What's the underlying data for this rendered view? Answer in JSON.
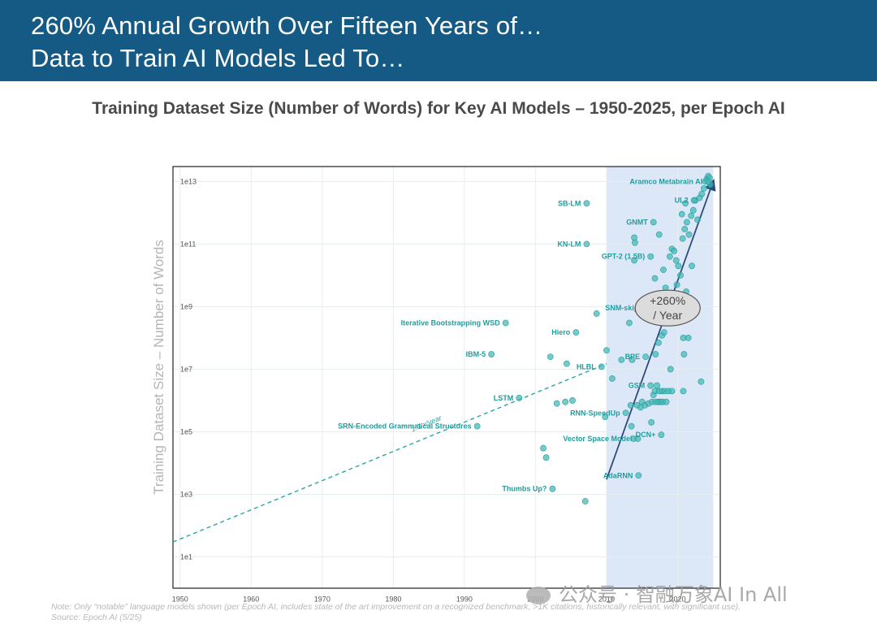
{
  "banner": {
    "line1": "260% Annual Growth Over Fifteen Years of…",
    "line2": "Data to Train AI Models Led To…"
  },
  "subtitle": "Training Dataset Size (Number of Words) for Key AI Models – 1950-2025, per Epoch AI",
  "chart_data": {
    "type": "scatter",
    "title": "",
    "xlabel": "",
    "ylabel": "Training Dataset Size – Number of Words",
    "x_scale": "linear",
    "y_scale": "log",
    "xlim": [
      1949,
      2026
    ],
    "ylim": [
      1,
      30000000000000.0
    ],
    "x_ticks": [
      1950,
      1960,
      1970,
      1980,
      1990,
      2000,
      2010,
      2020
    ],
    "x_tick_labels": [
      "1950",
      "1960",
      "1970",
      "1980",
      "1990",
      "2000",
      "2010",
      "2020"
    ],
    "y_ticks": [
      10,
      1000,
      100000,
      10000000,
      1000000000,
      100000000000,
      10000000000000
    ],
    "y_tick_labels": [
      "1e1",
      "1e3",
      "1e5",
      "1e7",
      "1e9",
      "1e11",
      "1e13"
    ],
    "grid": true,
    "highlight_region": {
      "x_from": 2010,
      "x_to": 2025,
      "color": "#dce8f8"
    },
    "point_color": "#3fb8b6",
    "label_color": "#1f9d9b",
    "labeled_points": [
      {
        "name": "SRN-Encoded Grammatical Structures",
        "x": 1991.8,
        "y": 150000
      },
      {
        "name": "IBM-5",
        "x": 1993.8,
        "y": 30000000
      },
      {
        "name": "Iterative Bootstrapping WSD",
        "x": 1995.8,
        "y": 300000000
      },
      {
        "name": "LSTM",
        "x": 1997.7,
        "y": 1200000
      },
      {
        "name": "Thumbs Up?",
        "x": 2002.4,
        "y": 1500
      },
      {
        "name": "Vector Space Model",
        "x": 2014.4,
        "y": 60000
      },
      {
        "name": "Hiero",
        "x": 2005.7,
        "y": 150000000
      },
      {
        "name": "SB-LM",
        "x": 2007.2,
        "y": 2000000000000
      },
      {
        "name": "KN-LM",
        "x": 2007.2,
        "y": 100000000000
      },
      {
        "name": "HLBL",
        "x": 2009.3,
        "y": 12000000
      },
      {
        "name": "RNN-SpeedUp",
        "x": 2012.7,
        "y": 400000
      },
      {
        "name": "AdaRNN",
        "x": 2014.5,
        "y": 4000
      },
      {
        "name": "BPE",
        "x": 2015.5,
        "y": 25000000
      },
      {
        "name": "GSM",
        "x": 2016.2,
        "y": 3000000
      },
      {
        "name": "DCN+",
        "x": 2017.7,
        "y": 80000
      },
      {
        "name": "SNM-skip",
        "x": 2015.3,
        "y": 900000000
      },
      {
        "name": "GPT-2 (1.5B)",
        "x": 2016.2,
        "y": 40000000000
      },
      {
        "name": "GNMT",
        "x": 2016.6,
        "y": 500000000000
      },
      {
        "name": "UL2",
        "x": 2022.3,
        "y": 2500000000000
      },
      {
        "name": "Aramco Metabrain AI",
        "x": 2024.3,
        "y": 10000000000000
      }
    ],
    "points": [
      {
        "x": 2001.1,
        "y": 30000
      },
      {
        "x": 2001.5,
        "y": 15000
      },
      {
        "x": 2002.1,
        "y": 25000000
      },
      {
        "x": 2004.4,
        "y": 15000000
      },
      {
        "x": 2003.0,
        "y": 800000
      },
      {
        "x": 2004.2,
        "y": 900000
      },
      {
        "x": 2005.2,
        "y": 1000000
      },
      {
        "x": 2007.0,
        "y": 600
      },
      {
        "x": 2008.6,
        "y": 600000000
      },
      {
        "x": 2009.8,
        "y": 300000
      },
      {
        "x": 2010.0,
        "y": 40000000
      },
      {
        "x": 2010.8,
        "y": 5000000
      },
      {
        "x": 2012.1,
        "y": 20000000
      },
      {
        "x": 2013.2,
        "y": 300000000
      },
      {
        "x": 2013.6,
        "y": 20000000
      },
      {
        "x": 2013.9,
        "y": 30000000000
      },
      {
        "x": 2013.9,
        "y": 160000000000
      },
      {
        "x": 2014.0,
        "y": 110000000000
      },
      {
        "x": 2013.4,
        "y": 700000
      },
      {
        "x": 2013.5,
        "y": 150000
      },
      {
        "x": 2013.8,
        "y": 60000
      },
      {
        "x": 2014.3,
        "y": 700000
      },
      {
        "x": 2014.8,
        "y": 600000
      },
      {
        "x": 2015.0,
        "y": 900000
      },
      {
        "x": 2015.4,
        "y": 700000
      },
      {
        "x": 2015.9,
        "y": 800000
      },
      {
        "x": 2016.4,
        "y": 900000
      },
      {
        "x": 2016.6,
        "y": 1500000
      },
      {
        "x": 2016.9,
        "y": 900000
      },
      {
        "x": 2017.3,
        "y": 900000
      },
      {
        "x": 2017.6,
        "y": 900000
      },
      {
        "x": 2017.9,
        "y": 900000
      },
      {
        "x": 2016.8,
        "y": 2000000
      },
      {
        "x": 2017.4,
        "y": 2000000
      },
      {
        "x": 2017.8,
        "y": 2000000
      },
      {
        "x": 2018.2,
        "y": 2000000
      },
      {
        "x": 2018.4,
        "y": 900000
      },
      {
        "x": 2018.7,
        "y": 2000000
      },
      {
        "x": 2019.2,
        "y": 2000000
      },
      {
        "x": 2020.8,
        "y": 2000000
      },
      {
        "x": 2017.1,
        "y": 3000000
      },
      {
        "x": 2016.3,
        "y": 200000
      },
      {
        "x": 2016.9,
        "y": 30000000
      },
      {
        "x": 2017.3,
        "y": 70000000
      },
      {
        "x": 2017.8,
        "y": 120000000
      },
      {
        "x": 2018.1,
        "y": 150000000
      },
      {
        "x": 2018.4,
        "y": 350000000
      },
      {
        "x": 2018.8,
        "y": 700000000
      },
      {
        "x": 2019.2,
        "y": 1200000000
      },
      {
        "x": 2019.6,
        "y": 600000000
      },
      {
        "x": 2020.2,
        "y": 1800000000
      },
      {
        "x": 2020.8,
        "y": 100000000
      },
      {
        "x": 2021.2,
        "y": 3000000000
      },
      {
        "x": 2021.5,
        "y": 100000000
      },
      {
        "x": 2020.9,
        "y": 30000000
      },
      {
        "x": 2016.8,
        "y": 8000000000
      },
      {
        "x": 2017.4,
        "y": 200000000000
      },
      {
        "x": 2018.0,
        "y": 15000000000
      },
      {
        "x": 2018.3,
        "y": 4000000000
      },
      {
        "x": 2018.6,
        "y": 2000000000
      },
      {
        "x": 2018.9,
        "y": 40000000000
      },
      {
        "x": 2019.2,
        "y": 70000000000
      },
      {
        "x": 2019.5,
        "y": 60000000000
      },
      {
        "x": 2019.8,
        "y": 30000000000
      },
      {
        "x": 2020.1,
        "y": 20000000000
      },
      {
        "x": 2020.4,
        "y": 10000000000
      },
      {
        "x": 2020.7,
        "y": 150000000000
      },
      {
        "x": 2021.0,
        "y": 300000000000
      },
      {
        "x": 2021.3,
        "y": 500000000000
      },
      {
        "x": 2021.6,
        "y": 200000000000
      },
      {
        "x": 2021.9,
        "y": 800000000000
      },
      {
        "x": 2022.2,
        "y": 1200000000000
      },
      {
        "x": 2022.5,
        "y": 2500000000000
      },
      {
        "x": 2022.8,
        "y": 600000000000
      },
      {
        "x": 2023.1,
        "y": 3000000000000
      },
      {
        "x": 2023.4,
        "y": 4000000000000
      },
      {
        "x": 2023.7,
        "y": 6000000000000
      },
      {
        "x": 2023.9,
        "y": 10000000000000
      },
      {
        "x": 2024.1,
        "y": 12000000000000
      },
      {
        "x": 2024.3,
        "y": 15000000000000
      },
      {
        "x": 2024.5,
        "y": 13000000000000
      },
      {
        "x": 2024.6,
        "y": 8000000000000
      },
      {
        "x": 2021.1,
        "y": 2000000000000
      },
      {
        "x": 2020.6,
        "y": 900000000000
      },
      {
        "x": 2019.9,
        "y": 5000000000
      },
      {
        "x": 2022.0,
        "y": 20000000000
      },
      {
        "x": 2022.7,
        "y": 1000000000
      },
      {
        "x": 2023.3,
        "y": 4000000
      },
      {
        "x": 2019.0,
        "y": 10000000
      }
    ],
    "trend_lines": [
      {
        "label": "1.3 x/year",
        "from": {
          "x": 1949,
          "y": 30
        },
        "to": {
          "x": 2010,
          "y": 15000000
        },
        "style": "dashed"
      },
      {
        "label": "+260% / Year",
        "from": {
          "x": 2010,
          "y": 3000
        },
        "to": {
          "x": 2025,
          "y": 10000000000000
        },
        "style": "arrow"
      }
    ],
    "annotations": [
      {
        "text_line1": "+260%",
        "text_line2": "/ Year",
        "x": 2018.6,
        "y": 900000000,
        "shape": "ellipse"
      }
    ]
  },
  "footnote": {
    "line1": "Note: Only “notable” language models shown (per Epoch AI, includes state of the art improvement on a recognized benchmark, >1K citations, historically relevant, with significant use).",
    "line2": "Source: Epoch AI (5/25)"
  },
  "watermark": "公众号 · 智融万象AI In All"
}
